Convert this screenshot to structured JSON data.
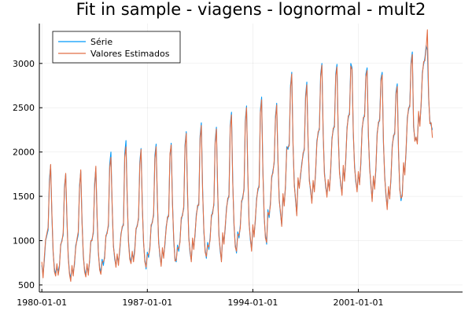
{
  "chart_data": {
    "type": "line",
    "title": "Fit in sample - viagens - lognormal - mult2",
    "xlabel": "",
    "ylabel": "",
    "x_start": "1980-01",
    "frequency": "monthly",
    "xlim": [
      "1979-11-01",
      "2007-12-01"
    ],
    "ylim": [
      420,
      3450
    ],
    "xticks": [
      "1980-01-01",
      "1987-01-01",
      "1994-01-01",
      "2001-01-01"
    ],
    "yticks": [
      500,
      1000,
      1500,
      2000,
      2500,
      3000
    ],
    "grid": true,
    "legend_position": "top-left",
    "series": [
      {
        "name": "Série",
        "color": "#009af9",
        "values": [
          720,
          620,
          780,
          1000,
          1060,
          1120,
          1690,
          1850,
          1280,
          860,
          690,
          620,
          700,
          650,
          720,
          940,
          1010,
          1060,
          1610,
          1750,
          1220,
          830,
          640,
          580,
          680,
          640,
          730,
          950,
          1000,
          1070,
          1620,
          1780,
          1230,
          820,
          680,
          610,
          700,
          650,
          760,
          980,
          1020,
          1080,
          1640,
          1820,
          1250,
          860,
          700,
          640,
          790,
          720,
          830,
          1040,
          1100,
          1160,
          1860,
          2000,
          1380,
          950,
          790,
          720,
          820,
          760,
          870,
          1080,
          1140,
          1200,
          1980,
          2130,
          1460,
          1000,
          820,
          760,
          850,
          790,
          910,
          1120,
          1180,
          1240,
          1890,
          2040,
          1400,
          970,
          790,
          680,
          870,
          810,
          930,
          1150,
          1220,
          1280,
          1960,
          2090,
          1430,
          1000,
          820,
          730,
          890,
          830,
          950,
          1160,
          1240,
          1300,
          1950,
          2100,
          1450,
          1000,
          800,
          760,
          950,
          880,
          1010,
          1230,
          1300,
          1360,
          2080,
          2230,
          1520,
          1050,
          860,
          780,
          1000,
          930,
          1060,
          1300,
          1370,
          1430,
          2180,
          2330,
          1590,
          1100,
          900,
          800,
          980,
          900,
          1040,
          1260,
          1330,
          1400,
          2130,
          2280,
          1560,
          1080,
          880,
          780,
          1060,
          990,
          1130,
          1370,
          1450,
          1520,
          2300,
          2450,
          1680,
          1170,
          960,
          860,
          1100,
          1030,
          1170,
          1420,
          1500,
          1570,
          2360,
          2520,
          1740,
          1220,
          1010,
          900,
          1150,
          1070,
          1220,
          1480,
          1560,
          1630,
          2470,
          2620,
          1810,
          1270,
          1060,
          960,
          1350,
          1260,
          1430,
          1700,
          1790,
          1870,
          2400,
          2550,
          1900,
          1480,
          1300,
          1180,
          1500,
          1420,
          1600,
          2060,
          2030,
          2100,
          2750,
          2900,
          2080,
          1650,
          1450,
          1300,
          1680,
          1620,
          1720,
          1880,
          1960,
          2050,
          2640,
          2790,
          2100,
          1700,
          1550,
          1450,
          1650,
          1580,
          1760,
          2130,
          2200,
          2280,
          2880,
          3000,
          2200,
          1780,
          1600,
          1520,
          1660,
          1590,
          1780,
          2160,
          2240,
          2310,
          2880,
          2990,
          2190,
          1790,
          1620,
          1540,
          1820,
          1700,
          1900,
          2280,
          2380,
          2450,
          3000,
          2950,
          2200,
          1850,
          1660,
          1580,
          1750,
          1660,
          1860,
          2270,
          2360,
          2430,
          2880,
          2950,
          2180,
          1840,
          1620,
          1470,
          1700,
          1610,
          1800,
          2220,
          2310,
          2380,
          2830,
          2900,
          2100,
          1740,
          1500,
          1380,
          1580,
          1500,
          1690,
          2080,
          2160,
          2230,
          2680,
          2770,
          1990,
          1600,
          1450,
          1530,
          1850,
          1770,
          1990,
          2390,
          2470,
          2540,
          3020,
          3130,
          2280,
          2150,
          2140,
          2120,
          2430,
          2320,
          2520,
          2900,
          2990,
          3060,
          3200,
          3150,
          2600,
          2350,
          2300,
          2250
        ]
      },
      {
        "name": "Valores Estimados",
        "color": "#e26f46",
        "values": [
          760,
          580,
          820,
          1010,
          1080,
          1150,
          1640,
          1860,
          1310,
          880,
          650,
          600,
          740,
          610,
          700,
          960,
          990,
          1090,
          1580,
          1760,
          1250,
          810,
          620,
          540,
          720,
          600,
          760,
          920,
          1020,
          1100,
          1590,
          1800,
          1200,
          850,
          650,
          590,
          740,
          610,
          780,
          1000,
          1000,
          1110,
          1600,
          1840,
          1270,
          880,
          670,
          620,
          760,
          760,
          800,
          1060,
          1080,
          1190,
          1820,
          1940,
          1400,
          930,
          820,
          700,
          850,
          720,
          900,
          1060,
          1160,
          1170,
          1940,
          2060,
          1480,
          980,
          790,
          740,
          880,
          760,
          880,
          1140,
          1160,
          1270,
          1850,
          2030,
          1380,
          990,
          760,
          700,
          840,
          840,
          900,
          1180,
          1200,
          1310,
          1920,
          2060,
          1460,
          970,
          850,
          710,
          920,
          800,
          980,
          1130,
          1270,
          1270,
          1980,
          2080,
          1420,
          1030,
          770,
          780,
          920,
          910,
          980,
          1260,
          1280,
          1390,
          2050,
          2210,
          1550,
          1020,
          890,
          760,
          1030,
          900,
          1090,
          1270,
          1400,
          1400,
          2150,
          2300,
          1560,
          1130,
          870,
          820,
          950,
          930,
          1010,
          1290,
          1300,
          1430,
          2100,
          2260,
          1590,
          1050,
          910,
          760,
          1090,
          960,
          1160,
          1340,
          1480,
          1490,
          2270,
          2420,
          1650,
          1200,
          930,
          880,
          1070,
          1060,
          1140,
          1450,
          1470,
          1600,
          2330,
          2500,
          1770,
          1190,
          1040,
          880,
          1180,
          1040,
          1250,
          1450,
          1590,
          1600,
          2440,
          2590,
          1780,
          1300,
          1030,
          980,
          1320,
          1290,
          1400,
          1730,
          1760,
          1900,
          2370,
          2530,
          1930,
          1450,
          1330,
          1160,
          1530,
          1390,
          1630,
          2030,
          2060,
          2070,
          2720,
          2880,
          2110,
          1620,
          1480,
          1280,
          1710,
          1590,
          1750,
          1850,
          1990,
          2020,
          2610,
          2760,
          2130,
          1670,
          1580,
          1420,
          1680,
          1550,
          1790,
          2100,
          2230,
          2250,
          2850,
          2980,
          2230,
          1750,
          1630,
          1490,
          1690,
          1560,
          1810,
          2130,
          2270,
          2280,
          2850,
          2960,
          2220,
          1760,
          1650,
          1510,
          1850,
          1670,
          1930,
          2250,
          2410,
          2420,
          2970,
          2930,
          2230,
          1820,
          1690,
          1550,
          1780,
          1630,
          1890,
          2240,
          2390,
          2400,
          2850,
          2920,
          2210,
          1810,
          1650,
          1440,
          1730,
          1580,
          1830,
          2190,
          2340,
          2350,
          2800,
          2870,
          2130,
          1710,
          1530,
          1350,
          1610,
          1470,
          1720,
          2050,
          2190,
          2200,
          2650,
          2740,
          2020,
          1570,
          1480,
          1500,
          1880,
          1740,
          2020,
          2360,
          2500,
          2510,
          2990,
          3100,
          2310,
          2120,
          2170,
          2090,
          2460,
          2290,
          2550,
          2870,
          3020,
          3030,
          3170,
          3380,
          2630,
          2320,
          2330,
          2160
        ]
      }
    ]
  }
}
